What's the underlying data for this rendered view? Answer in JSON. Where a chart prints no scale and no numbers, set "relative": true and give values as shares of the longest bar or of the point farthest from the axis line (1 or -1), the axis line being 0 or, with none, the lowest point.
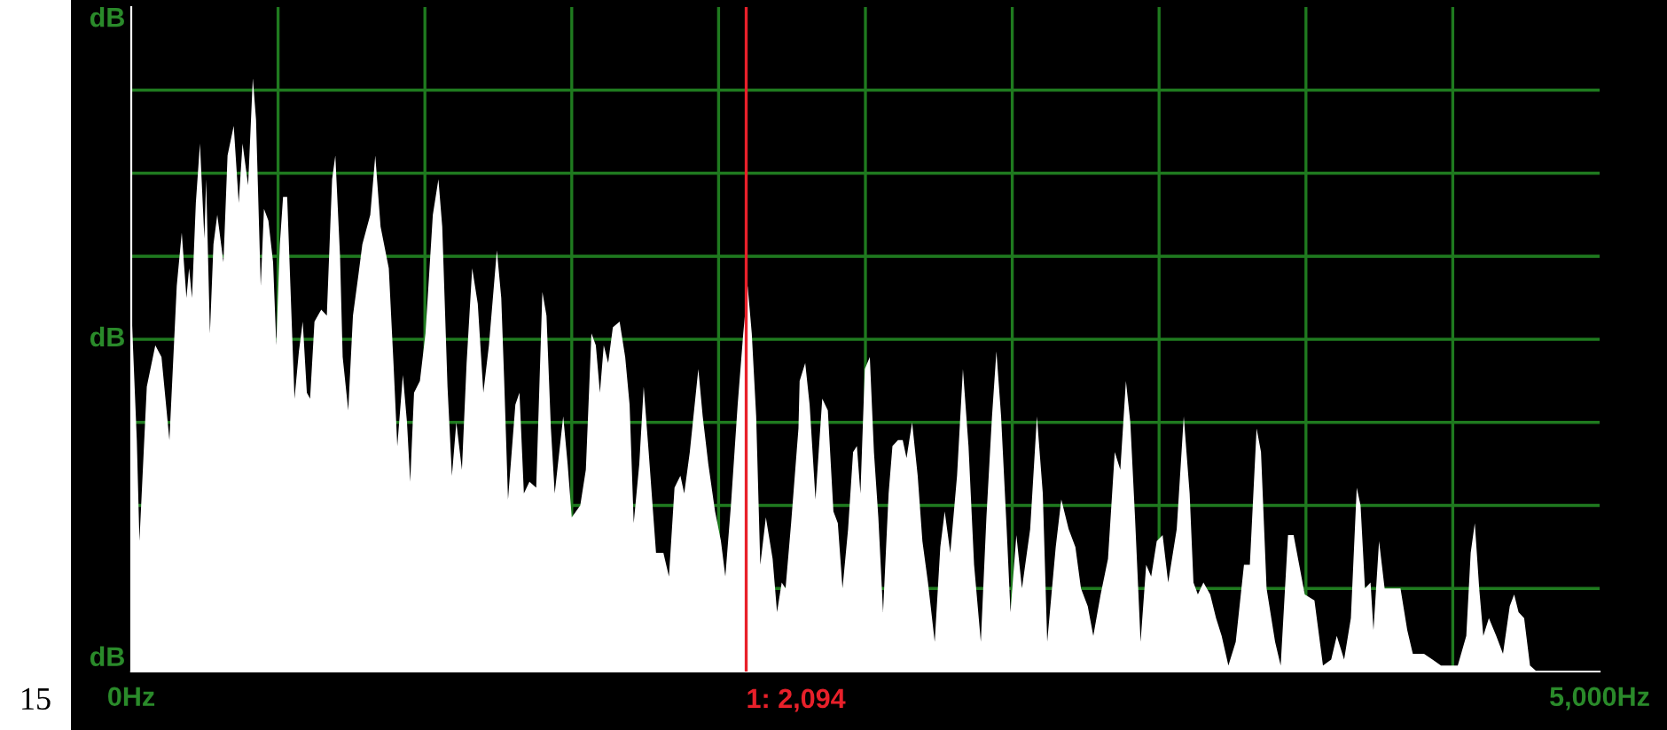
{
  "chart_data": {
    "type": "area",
    "relative": true,
    "xlim": [
      0,
      5000
    ],
    "xticks": [
      {
        "value": 0,
        "label": "0Hz"
      },
      {
        "value": 500,
        "label": null
      },
      {
        "value": 1000,
        "label": null
      },
      {
        "value": 1500,
        "label": null
      },
      {
        "value": 2000,
        "label": null
      },
      {
        "value": 2500,
        "label": null
      },
      {
        "value": 3000,
        "label": null
      },
      {
        "value": 3500,
        "label": null
      },
      {
        "value": 4000,
        "label": null
      },
      {
        "value": 4500,
        "label": null
      },
      {
        "value": 5000,
        "label": "5,000Hz"
      }
    ],
    "grid": true,
    "ref_lines": [
      {
        "axis": "x",
        "value": 2094,
        "label": "1: 2,094",
        "color": "#e8202a"
      }
    ],
    "annotations": [
      "dB",
      "dB",
      "dB",
      "15"
    ],
    "series": [
      {
        "color": "#ffffff",
        "x": [
          0,
          19,
          28,
          53,
          82,
          103,
          130,
          155,
          172,
          188,
          197,
          207,
          220,
          234,
          249,
          255,
          268,
          280,
          293,
          314,
          328,
          349,
          366,
          379,
          398,
          414,
          425,
          441,
          452,
          467,
          483,
          494,
          506,
          517,
          531,
          542,
          556,
          571,
          584,
          598,
          609,
          624,
          647,
          666,
          684,
          695,
          711,
          720,
          739,
          755,
          774,
          787,
          814,
          831,
          849,
          877,
          893,
          906,
          925,
          939,
          950,
          963,
          983,
          1002,
          1027,
          1046,
          1059,
          1077,
          1092,
          1107,
          1126,
          1142,
          1161,
          1180,
          1199,
          1218,
          1245,
          1260,
          1270,
          1283,
          1308,
          1322,
          1337,
          1356,
          1379,
          1391,
          1400,
          1414,
          1429,
          1442,
          1462,
          1471,
          1486,
          1500,
          1529,
          1548,
          1567,
          1582,
          1596,
          1609,
          1624,
          1640,
          1663,
          1682,
          1697,
          1711,
          1730,
          1745,
          1762,
          1787,
          1812,
          1831,
          1850,
          1870,
          1883,
          1902,
          1931,
          1946,
          1965,
          1988,
          2008,
          2023,
          2042,
          2065,
          2084,
          2099,
          2113,
          2128,
          2142,
          2161,
          2184,
          2199,
          2215,
          2228,
          2247,
          2272,
          2276,
          2295,
          2310,
          2330,
          2353,
          2372,
          2391,
          2406,
          2422,
          2441,
          2458,
          2471,
          2483,
          2498,
          2515,
          2529,
          2544,
          2560,
          2579,
          2592,
          2611,
          2627,
          2640,
          2659,
          2678,
          2694,
          2713,
          2736,
          2755,
          2770,
          2789,
          2812,
          2832,
          2851,
          2870,
          2893,
          2912,
          2931,
          2946,
          2962,
          2981,
          2994,
          3014,
          3033,
          3061,
          3084,
          3104,
          3119,
          3148,
          3167,
          3192,
          3215,
          3234,
          3257,
          3276,
          3301,
          3326,
          3349,
          3368,
          3387,
          3402,
          3418,
          3437,
          3456,
          3473,
          3492,
          3512,
          3531,
          3560,
          3584,
          3604,
          3617,
          3632,
          3651,
          3674,
          3694,
          3713,
          3736,
          3761,
          3789,
          3809,
          3832,
          3847,
          3866,
          3895,
          3914,
          3939,
          3958,
          3977,
          3996,
          4029,
          4058,
          4086,
          4105,
          4130,
          4153,
          4173,
          4186,
          4201,
          4220,
          4230,
          4249,
          4268,
          4297,
          4322,
          4345,
          4364,
          4402,
          4431,
          4460,
          4517,
          4546,
          4561,
          4575,
          4590,
          4604,
          4623,
          4648,
          4671,
          4694,
          4709,
          4724,
          4743,
          4763,
          4786
        ],
        "values": [
          0.62,
          0.39,
          0.22,
          0.48,
          0.55,
          0.53,
          0.39,
          0.65,
          0.74,
          0.63,
          0.68,
          0.63,
          0.79,
          0.89,
          0.73,
          0.83,
          0.57,
          0.72,
          0.77,
          0.69,
          0.87,
          0.92,
          0.79,
          0.89,
          0.82,
          1.0,
          0.93,
          0.65,
          0.78,
          0.76,
          0.69,
          0.55,
          0.72,
          0.8,
          0.8,
          0.65,
          0.46,
          0.54,
          0.59,
          0.47,
          0.46,
          0.59,
          0.61,
          0.6,
          0.83,
          0.87,
          0.7,
          0.53,
          0.44,
          0.6,
          0.67,
          0.72,
          0.77,
          0.87,
          0.75,
          0.68,
          0.52,
          0.38,
          0.5,
          0.42,
          0.32,
          0.47,
          0.49,
          0.57,
          0.77,
          0.83,
          0.75,
          0.48,
          0.33,
          0.42,
          0.34,
          0.52,
          0.68,
          0.62,
          0.47,
          0.55,
          0.71,
          0.63,
          0.49,
          0.29,
          0.45,
          0.47,
          0.3,
          0.32,
          0.31,
          0.5,
          0.64,
          0.6,
          0.41,
          0.3,
          0.39,
          0.43,
          0.35,
          0.26,
          0.28,
          0.34,
          0.57,
          0.55,
          0.47,
          0.55,
          0.52,
          0.58,
          0.59,
          0.53,
          0.45,
          0.25,
          0.35,
          0.48,
          0.37,
          0.2,
          0.2,
          0.16,
          0.31,
          0.33,
          0.3,
          0.37,
          0.51,
          0.43,
          0.35,
          0.27,
          0.22,
          0.16,
          0.28,
          0.45,
          0.57,
          0.65,
          0.57,
          0.43,
          0.18,
          0.26,
          0.19,
          0.1,
          0.15,
          0.14,
          0.25,
          0.41,
          0.49,
          0.52,
          0.45,
          0.29,
          0.46,
          0.44,
          0.27,
          0.25,
          0.14,
          0.24,
          0.37,
          0.38,
          0.3,
          0.51,
          0.53,
          0.37,
          0.26,
          0.1,
          0.3,
          0.38,
          0.39,
          0.39,
          0.36,
          0.42,
          0.33,
          0.22,
          0.15,
          0.05,
          0.21,
          0.27,
          0.2,
          0.33,
          0.51,
          0.38,
          0.18,
          0.05,
          0.26,
          0.43,
          0.54,
          0.43,
          0.24,
          0.1,
          0.23,
          0.14,
          0.24,
          0.43,
          0.3,
          0.05,
          0.21,
          0.29,
          0.24,
          0.21,
          0.14,
          0.11,
          0.06,
          0.13,
          0.19,
          0.37,
          0.34,
          0.49,
          0.42,
          0.26,
          0.05,
          0.18,
          0.16,
          0.22,
          0.23,
          0.15,
          0.24,
          0.43,
          0.3,
          0.15,
          0.13,
          0.15,
          0.13,
          0.09,
          0.06,
          0.01,
          0.05,
          0.18,
          0.18,
          0.41,
          0.37,
          0.14,
          0.05,
          0.01,
          0.23,
          0.23,
          0.18,
          0.13,
          0.12,
          0.01,
          0.02,
          0.06,
          0.02,
          0.09,
          0.31,
          0.28,
          0.14,
          0.15,
          0.07,
          0.22,
          0.14,
          0.14,
          0.14,
          0.07,
          0.03,
          0.03,
          0.02,
          0.01,
          0.01,
          0.06,
          0.2,
          0.25,
          0.14,
          0.06,
          0.09,
          0.06,
          0.03,
          0.11,
          0.13,
          0.1,
          0.09,
          0.01,
          0
        ]
      }
    ]
  }
}
